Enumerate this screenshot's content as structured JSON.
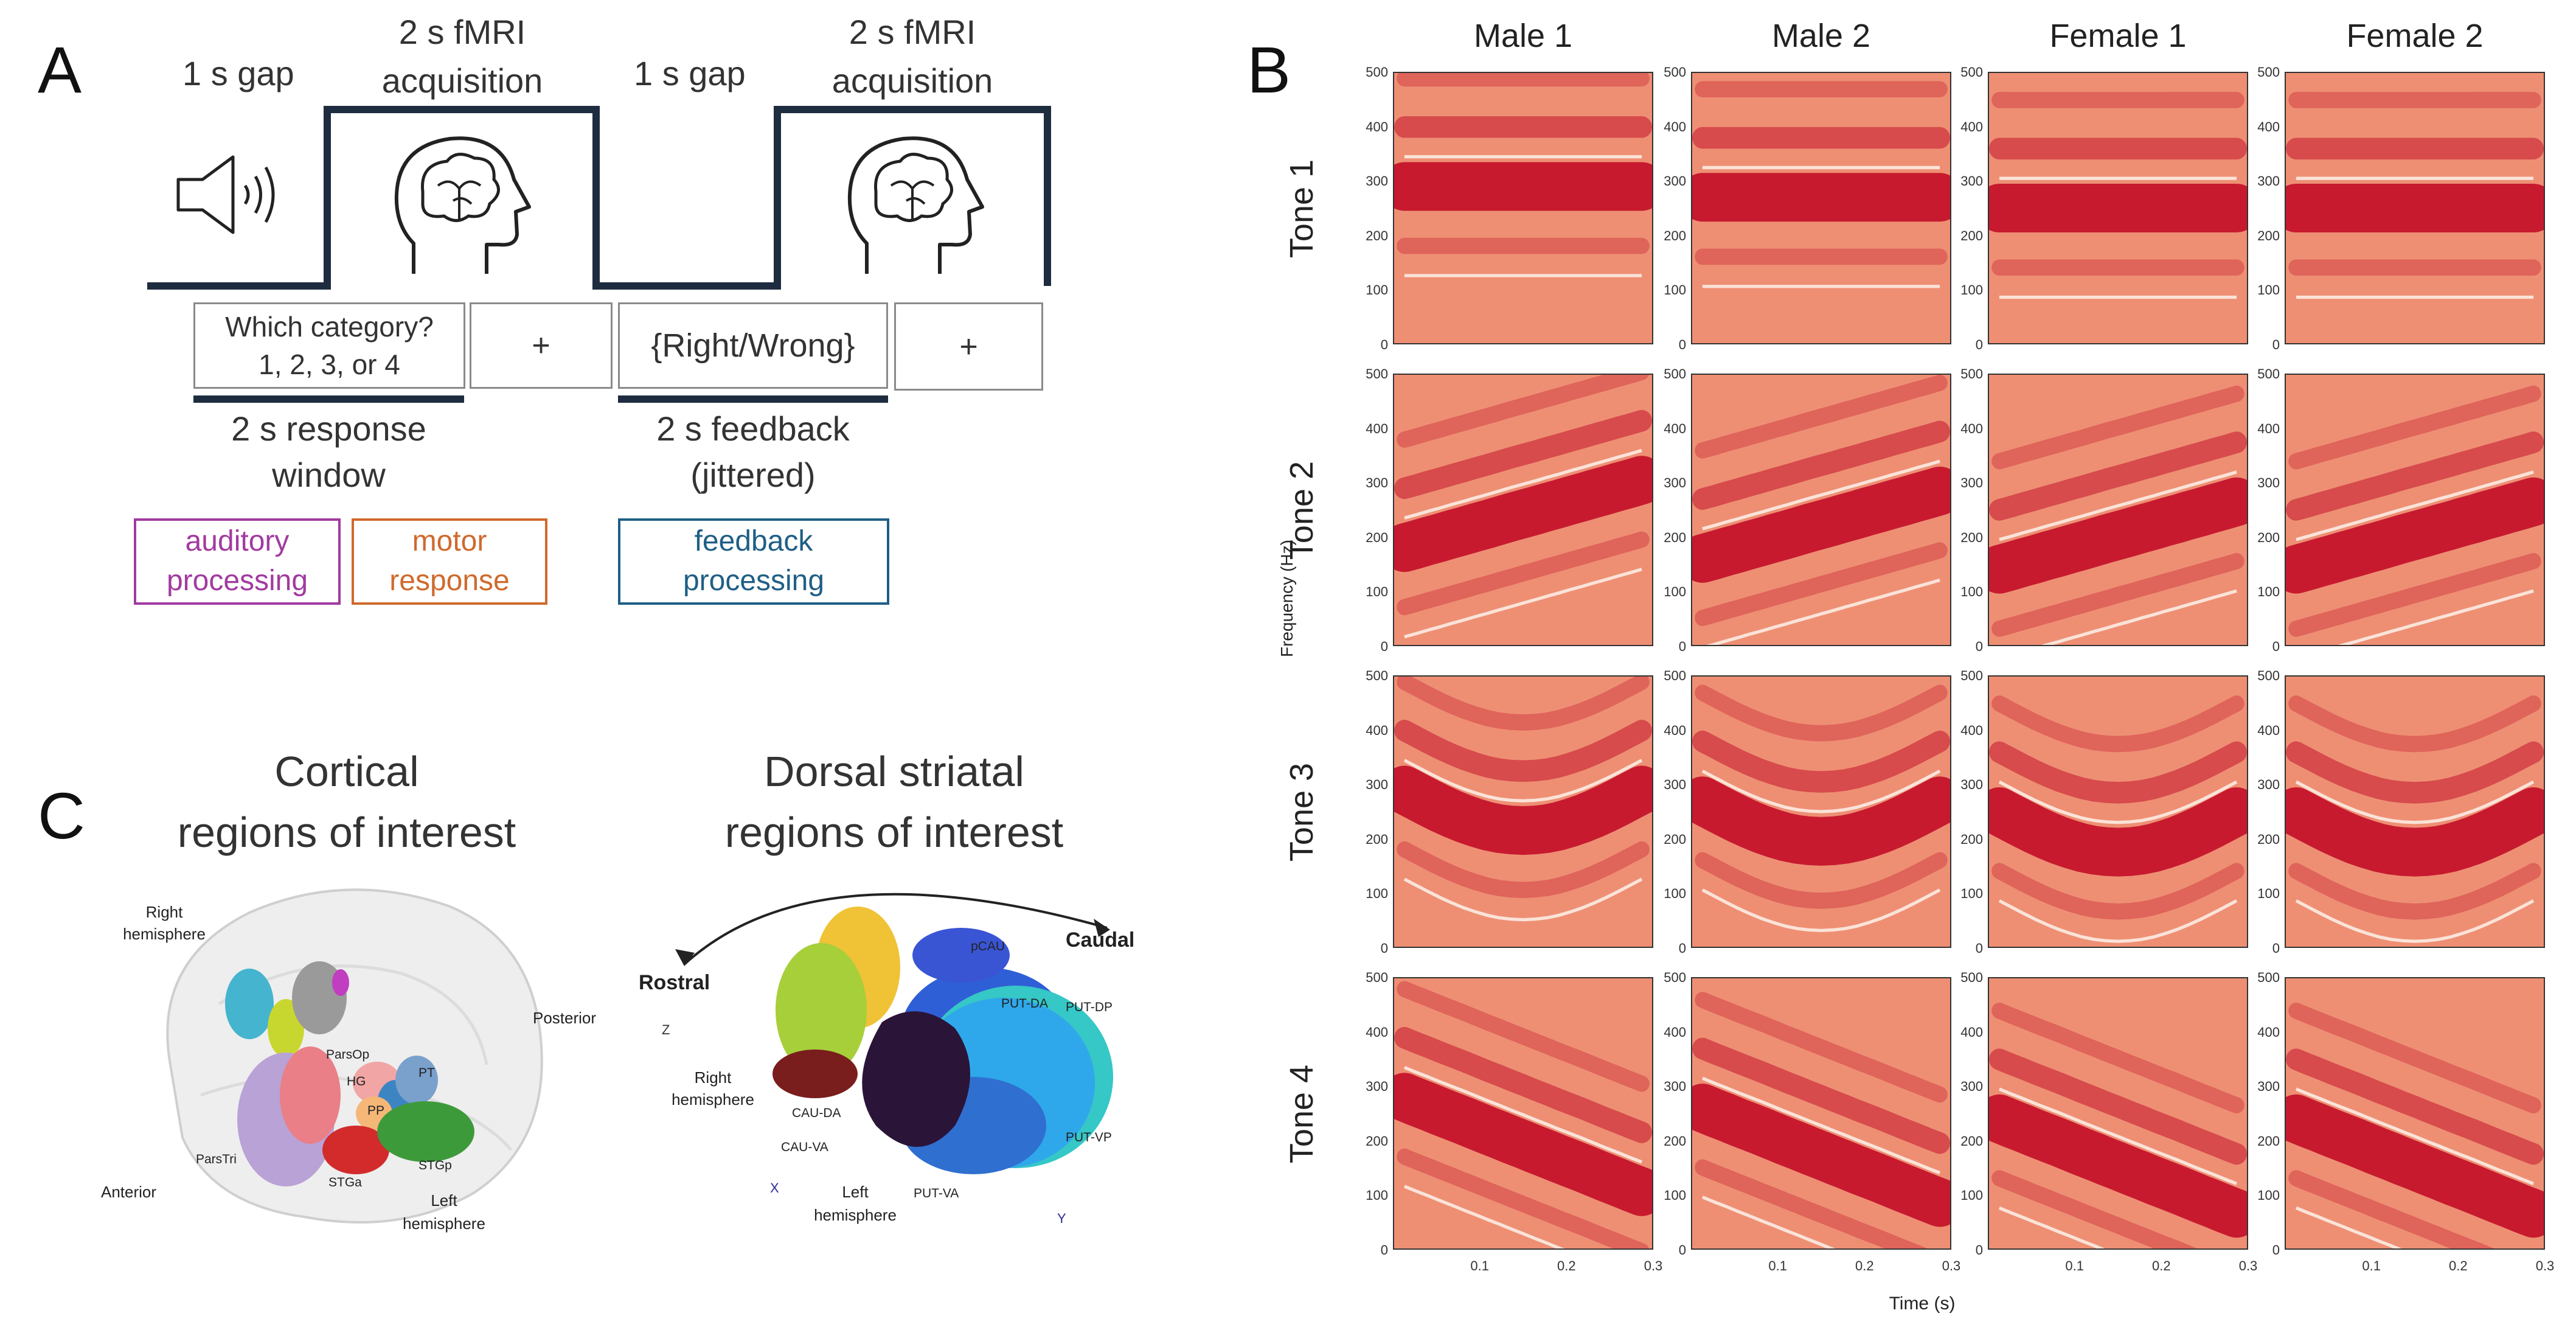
{
  "panel_a": {
    "letter": "A",
    "gap1": "1 s gap",
    "acq1_line1": "2 s fMRI",
    "acq1_line2": "acquisition",
    "gap2": "1 s gap",
    "acq2_line1": "2 s fMRI",
    "acq2_line2": "acquisition",
    "box_question_line1": "Which category?",
    "box_question_line2": "1, 2, 3, or 4",
    "box_fix1": "+",
    "box_feedback": "{Right/Wrong}",
    "box_fix2": "+",
    "response_line1": "2 s response",
    "response_line2": "window",
    "feedback_line1": "2 s feedback",
    "feedback_line2": "(jittered)",
    "tag_auditory_1": "auditory",
    "tag_auditory_2": "processing",
    "tag_motor_1": "motor",
    "tag_motor_2": "response",
    "tag_feedback_1": "feedback",
    "tag_feedback_2": "processing",
    "colors": {
      "auditory": "#a23aa0",
      "motor": "#cf6a2d",
      "feedback": "#1f5f86",
      "timeline": "#1e2c3f"
    }
  },
  "panel_b": {
    "letter": "B",
    "columns": [
      "Male 1",
      "Male 2",
      "Female 1",
      "Female 2"
    ],
    "rows": [
      "Tone 1",
      "Tone 2",
      "Tone 3",
      "Tone 4"
    ],
    "ylabel": "Frequency (Hz)",
    "xlabel": "Time (s)",
    "yticks": [
      "500",
      "400",
      "300",
      "200",
      "100",
      "0"
    ],
    "xticks": [
      "0.1",
      "0.2",
      "0.3"
    ],
    "colormap": {
      "low": "#fbe3d8",
      "mid": "#ee8f74",
      "high": "#c4142b"
    }
  },
  "panel_c": {
    "letter": "C",
    "cortical_title_1": "Cortical",
    "cortical_title_2": "regions of interest",
    "striatal_title_1": "Dorsal striatal",
    "striatal_title_2": "regions of interest",
    "cortical_labels": {
      "right_hemisphere_1": "Right",
      "right_hemisphere_2": "hemisphere",
      "posterior": "Posterior",
      "anterior": "Anterior",
      "left_hemisphere_1": "Left",
      "left_hemisphere_2": "hemisphere",
      "parsop": "ParsOp",
      "hg": "HG",
      "pt": "PT",
      "pp": "PP",
      "parstri": "ParsTri",
      "stga": "STGa",
      "stgp": "STGp"
    },
    "striatal_labels": {
      "rostral": "Rostral",
      "caudal": "Caudal",
      "pcau": "pCAU",
      "put_da": "PUT-DA",
      "put_dp": "PUT-DP",
      "put_vp": "PUT-VP",
      "put_va": "PUT-VA",
      "cau_da": "CAU-DA",
      "cau_va": "CAU-VA",
      "right_hemisphere_1": "Right",
      "right_hemisphere_2": "hemisphere",
      "left_hemisphere_1": "Left",
      "left_hemisphere_2": "hemisphere",
      "axis_z": "Z",
      "axis_x": "X",
      "axis_y": "Y"
    }
  }
}
